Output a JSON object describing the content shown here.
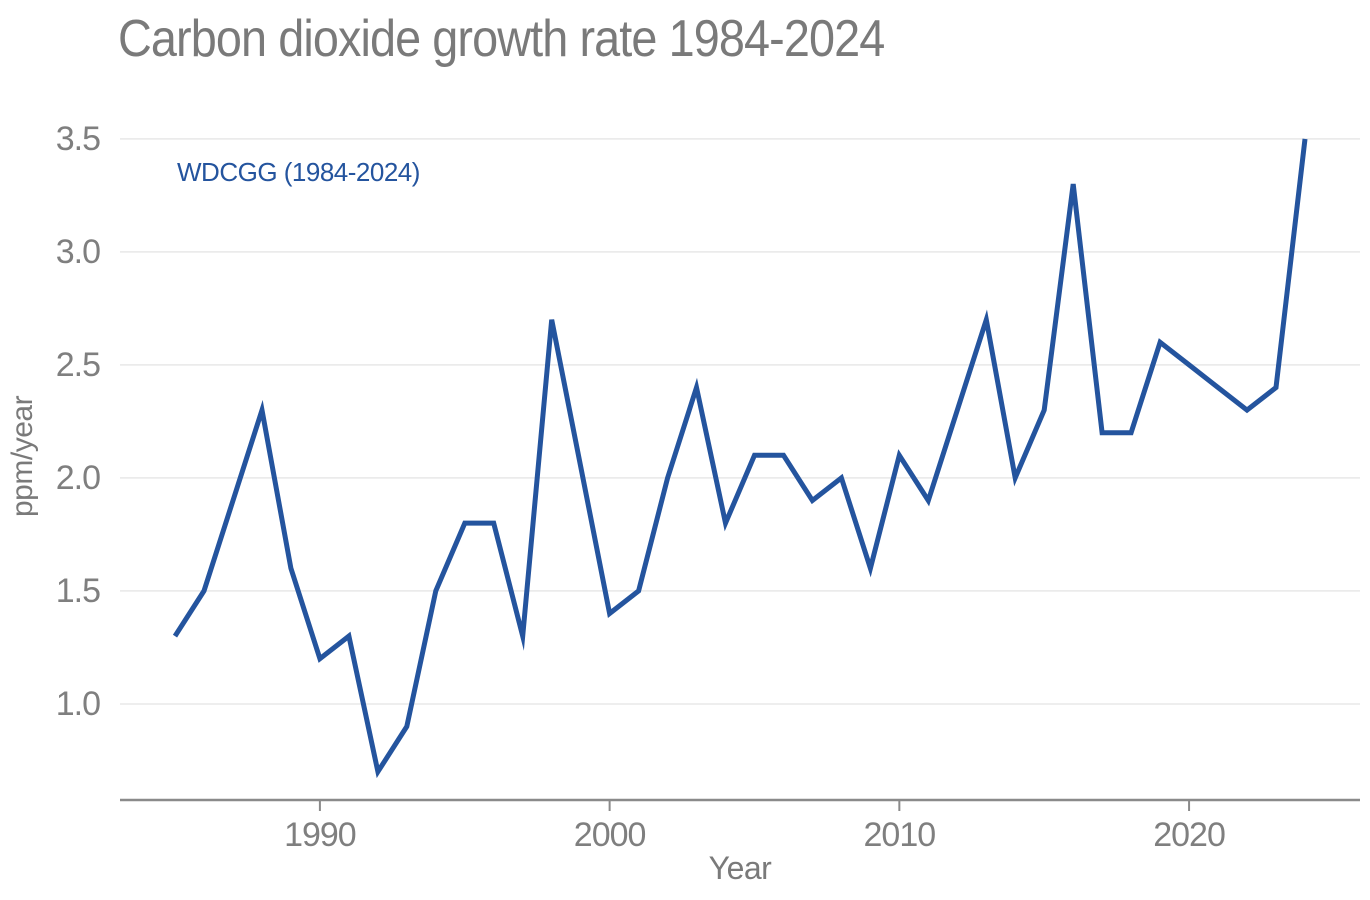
{
  "chart_data": {
    "type": "line",
    "title": "Carbon dioxide growth rate 1984-2024",
    "xlabel": "Year",
    "ylabel": "ppm/year",
    "legend_position": "upper-left-inside",
    "grid": "horizontal-only",
    "xlim": [
      1983.1,
      2025.9
    ],
    "ylim": [
      0.575,
      3.65
    ],
    "x_ticks": [
      {
        "value": 1990,
        "label": "1990"
      },
      {
        "value": 2000,
        "label": "2000"
      },
      {
        "value": 2010,
        "label": "2010"
      },
      {
        "value": 2020,
        "label": "2020"
      }
    ],
    "y_ticks": [
      {
        "value": 1.0,
        "label": "1.0"
      },
      {
        "value": 1.5,
        "label": "1.5"
      },
      {
        "value": 2.0,
        "label": "2.0"
      },
      {
        "value": 2.5,
        "label": "2.5"
      },
      {
        "value": 3.0,
        "label": "3.0"
      },
      {
        "value": 3.5,
        "label": "3.5"
      }
    ],
    "series": [
      {
        "name": "WDCGG (1984-2024)",
        "color": "#24549E",
        "x": [
          1985,
          1986,
          1987,
          1988,
          1989,
          1990,
          1991,
          1992,
          1993,
          1994,
          1995,
          1996,
          1997,
          1998,
          1999,
          2000,
          2001,
          2002,
          2003,
          2004,
          2005,
          2006,
          2007,
          2008,
          2009,
          2010,
          2011,
          2012,
          2013,
          2014,
          2015,
          2016,
          2017,
          2018,
          2019,
          2020,
          2021,
          2022,
          2023,
          2024
        ],
        "values": [
          1.3,
          1.5,
          1.9,
          2.3,
          1.6,
          1.2,
          1.3,
          0.7,
          0.9,
          1.5,
          1.8,
          1.8,
          1.3,
          2.7,
          2.05,
          1.4,
          1.5,
          2.0,
          2.4,
          1.8,
          2.1,
          2.1,
          1.9,
          2.0,
          1.6,
          2.1,
          1.9,
          2.3,
          2.7,
          2.0,
          2.3,
          3.3,
          2.2,
          2.2,
          2.6,
          2.5,
          2.4,
          2.3,
          2.4,
          3.5
        ]
      }
    ]
  },
  "colors": {
    "background": "#ffffff",
    "line": "#24549E",
    "legend_text": "#24549E",
    "title_text": "#7a7a7a",
    "tick_text": "#7f7f7f",
    "axis_line": "#8a8a8a",
    "gridline": "#e8e8e8"
  }
}
